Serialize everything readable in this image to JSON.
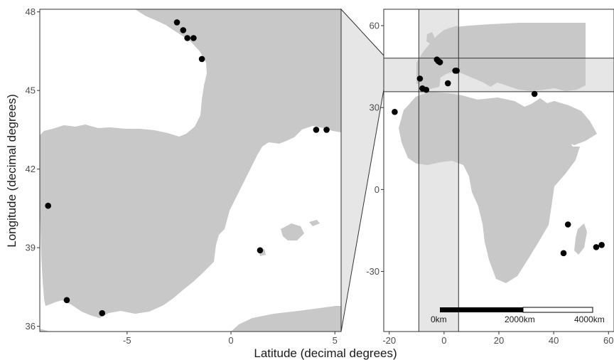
{
  "colors": {
    "land": "#c8c8c8",
    "water": "#ffffff",
    "highlight_band": "#e6e6e6",
    "point": "#000000",
    "frame": "#333333"
  },
  "axes": {
    "x_title": "Latitude (decimal degrees)",
    "y_title": "Longitude (decimal degrees)"
  },
  "chart_data": [
    {
      "type": "scatter",
      "panel": "detail",
      "xlim": [
        -9.2,
        5.3
      ],
      "ylim": [
        35.8,
        48.1
      ],
      "x_ticks": [
        -5,
        0,
        5
      ],
      "x_tick_labels": [
        "-5",
        "0",
        "5"
      ],
      "y_ticks": [
        36,
        39,
        42,
        45,
        48
      ],
      "y_tick_labels": [
        "36",
        "39",
        "42",
        "45",
        "48"
      ],
      "points": [
        {
          "x": -2.6,
          "y": 47.6
        },
        {
          "x": -2.3,
          "y": 47.3
        },
        {
          "x": -2.1,
          "y": 47.0
        },
        {
          "x": -1.8,
          "y": 47.0
        },
        {
          "x": -1.4,
          "y": 46.2
        },
        {
          "x": 4.1,
          "y": 43.5
        },
        {
          "x": 4.6,
          "y": 43.5
        },
        {
          "x": -8.8,
          "y": 40.6
        },
        {
          "x": 1.4,
          "y": 38.9
        },
        {
          "x": -7.9,
          "y": 37.0
        },
        {
          "x": -6.2,
          "y": 36.5
        }
      ]
    },
    {
      "type": "scatter",
      "panel": "overview",
      "xlim": [
        -22,
        62
      ],
      "ylim": [
        -52,
        66
      ],
      "x_ticks": [
        -20,
        0,
        20,
        40,
        60
      ],
      "x_tick_labels": [
        "-20",
        "0",
        "20",
        "40",
        "60"
      ],
      "y_ticks": [
        -30,
        0,
        30,
        60
      ],
      "y_tick_labels": [
        "-30",
        "0",
        "30",
        "60"
      ],
      "points": [
        {
          "x": -2.6,
          "y": 47.6
        },
        {
          "x": -2.1,
          "y": 47.0
        },
        {
          "x": -1.5,
          "y": 46.6
        },
        {
          "x": 4.1,
          "y": 43.5
        },
        {
          "x": 4.6,
          "y": 43.5
        },
        {
          "x": -8.8,
          "y": 40.6
        },
        {
          "x": 1.4,
          "y": 38.9
        },
        {
          "x": -7.9,
          "y": 37.0
        },
        {
          "x": -6.5,
          "y": 36.5
        },
        {
          "x": -18.0,
          "y": 28.4
        },
        {
          "x": 33.0,
          "y": 35.0
        },
        {
          "x": 45.2,
          "y": -12.8
        },
        {
          "x": 43.6,
          "y": -23.3
        },
        {
          "x": 55.5,
          "y": -21.1
        },
        {
          "x": 57.5,
          "y": -20.3
        }
      ],
      "highlight_lon": [
        -9.2,
        5.3
      ],
      "highlight_lat": [
        35.8,
        48.1
      ]
    }
  ],
  "scale_bar": {
    "labels": [
      "0km",
      "2000km",
      "4000km"
    ]
  }
}
